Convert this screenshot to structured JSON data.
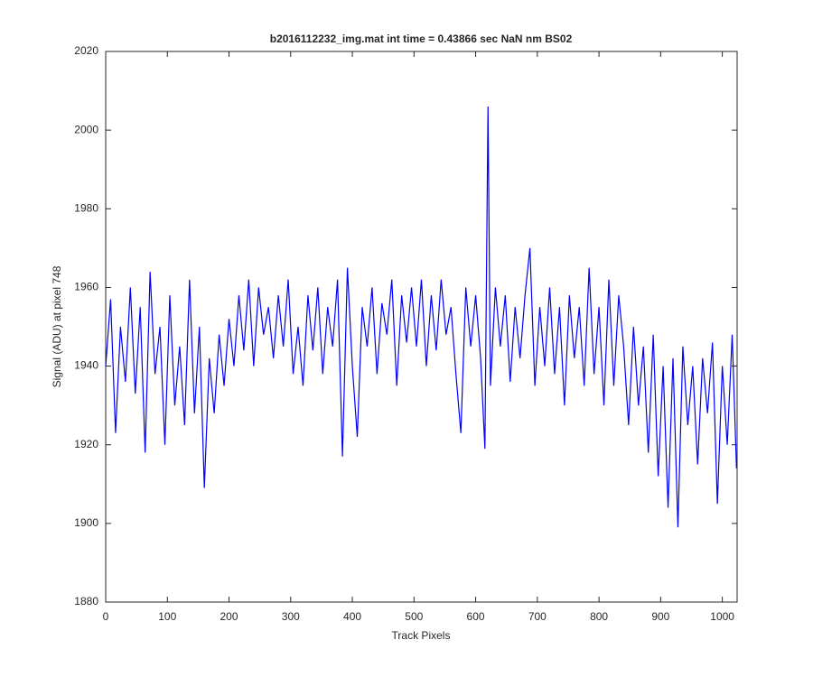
{
  "chart_data": {
    "type": "line",
    "title": "b2016112232_img.mat int time = 0.43866 sec  NaN nm BS02",
    "x_label": "Track Pixels",
    "y_label": "Signal (ADU) at pixel 748",
    "xlim": [
      0,
      1024
    ],
    "xticks": [
      0,
      100,
      200,
      300,
      400,
      500,
      600,
      700,
      800,
      900,
      1000
    ],
    "ylim": [
      1880,
      2020
    ],
    "yticks": [
      1880,
      1900,
      1920,
      1940,
      1960,
      1980,
      2000,
      2020
    ],
    "x": [
      0,
      8,
      16,
      24,
      32,
      40,
      48,
      56,
      64,
      72,
      80,
      88,
      96,
      104,
      112,
      120,
      128,
      136,
      144,
      152,
      160,
      168,
      176,
      184,
      192,
      200,
      208,
      216,
      224,
      232,
      240,
      248,
      256,
      264,
      272,
      280,
      288,
      296,
      304,
      312,
      320,
      328,
      336,
      344,
      352,
      360,
      368,
      376,
      384,
      392,
      400,
      408,
      416,
      424,
      432,
      440,
      448,
      456,
      464,
      472,
      480,
      488,
      496,
      504,
      512,
      520,
      528,
      536,
      544,
      552,
      560,
      568,
      576,
      584,
      592,
      600,
      608,
      615,
      620,
      624,
      632,
      640,
      648,
      656,
      664,
      672,
      680,
      688,
      696,
      704,
      712,
      720,
      728,
      736,
      744,
      752,
      760,
      768,
      776,
      784,
      792,
      800,
      808,
      816,
      824,
      832,
      840,
      848,
      856,
      864,
      872,
      880,
      888,
      896,
      904,
      912,
      920,
      928,
      936,
      944,
      952,
      960,
      968,
      976,
      984,
      992,
      1000,
      1008,
      1016,
      1023
    ],
    "series": [
      {
        "color": "#0000ff",
        "values": [
          1940,
          1957,
          1923,
          1950,
          1936,
          1960,
          1933,
          1955,
          1918,
          1964,
          1938,
          1950,
          1920,
          1958,
          1930,
          1945,
          1925,
          1962,
          1928,
          1950,
          1909,
          1942,
          1928,
          1948,
          1935,
          1952,
          1940,
          1958,
          1944,
          1962,
          1940,
          1960,
          1948,
          1955,
          1942,
          1958,
          1945,
          1962,
          1938,
          1950,
          1935,
          1958,
          1944,
          1960,
          1938,
          1955,
          1945,
          1962,
          1917,
          1965,
          1940,
          1922,
          1955,
          1945,
          1960,
          1938,
          1956,
          1948,
          1962,
          1935,
          1958,
          1946,
          1960,
          1945,
          1962,
          1940,
          1958,
          1944,
          1962,
          1948,
          1955,
          1938,
          1923,
          1960,
          1945,
          1958,
          1942,
          1919,
          2006,
          1935,
          1960,
          1945,
          1958,
          1936,
          1955,
          1942,
          1958,
          1970,
          1935,
          1955,
          1940,
          1960,
          1938,
          1955,
          1930,
          1958,
          1942,
          1955,
          1935,
          1965,
          1938,
          1955,
          1930,
          1962,
          1935,
          1958,
          1945,
          1925,
          1950,
          1930,
          1945,
          1918,
          1948,
          1912,
          1940,
          1904,
          1942,
          1899,
          1945,
          1925,
          1940,
          1915,
          1942,
          1928,
          1946,
          1905,
          1940,
          1920,
          1948,
          1914
        ]
      }
    ]
  }
}
